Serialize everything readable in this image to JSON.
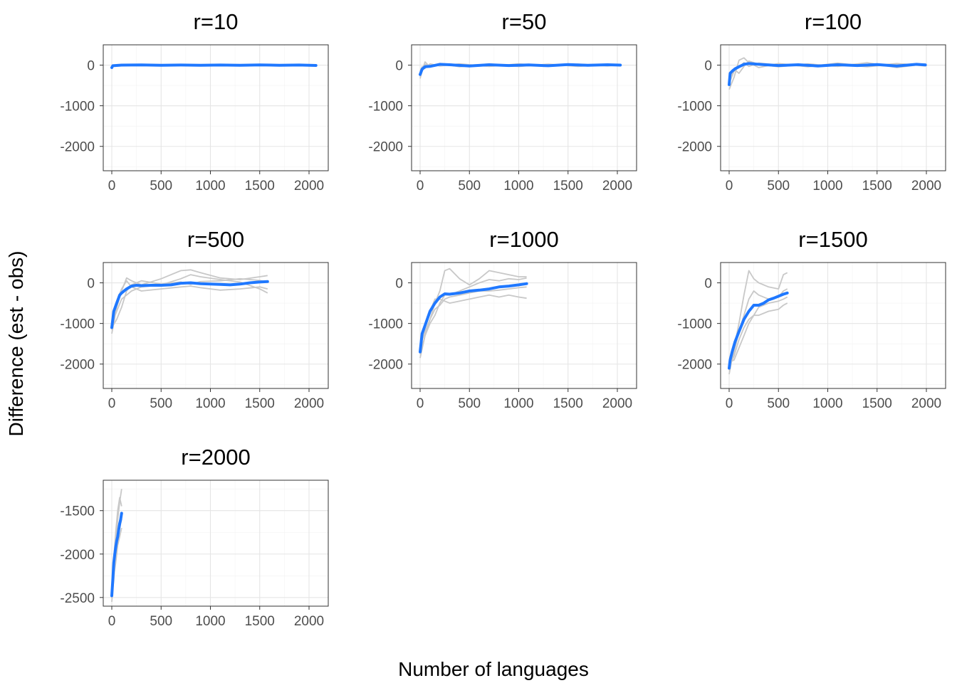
{
  "chart_data": {
    "type": "line",
    "xlabel": "Number of languages",
    "ylabel": "Difference (est - obs)",
    "colors": {
      "simulations": "#c8c8c8",
      "mean": "#1f78ff"
    },
    "facets": [
      {
        "title": "r=10",
        "xlim": [
          0,
          2080
        ],
        "ylim": [
          -2600,
          500
        ],
        "xticks": [
          0,
          500,
          1000,
          1500,
          2000
        ],
        "yticks": [
          0,
          -1000,
          -2000
        ],
        "mean": {
          "x": [
            0,
            10,
            100,
            300,
            500,
            700,
            900,
            1100,
            1300,
            1500,
            1700,
            1900,
            2070
          ],
          "y": [
            -60,
            -15,
            0,
            5,
            -5,
            3,
            -4,
            2,
            -3,
            4,
            -2,
            3,
            -8
          ]
        },
        "simulations": [
          {
            "x": [
              0,
              10,
              100,
              400,
              800,
              1200,
              1600,
              2070
            ],
            "y": [
              -80,
              -25,
              10,
              -10,
              8,
              -6,
              10,
              -12
            ]
          },
          {
            "x": [
              0,
              10,
              100,
              400,
              800,
              1200,
              1600,
              2070
            ],
            "y": [
              -40,
              -5,
              -10,
              12,
              -8,
              10,
              -8,
              6
            ]
          }
        ]
      },
      {
        "title": "r=50",
        "xlim": [
          0,
          2080
        ],
        "ylim": [
          -2600,
          500
        ],
        "xticks": [
          0,
          500,
          1000,
          1500,
          2000
        ],
        "yticks": [
          0,
          -1000,
          -2000
        ],
        "mean": {
          "x": [
            0,
            20,
            50,
            100,
            200,
            300,
            500,
            700,
            900,
            1100,
            1300,
            1500,
            1700,
            1900,
            2030
          ],
          "y": [
            -230,
            -100,
            -40,
            -30,
            20,
            10,
            -20,
            10,
            -10,
            5,
            -15,
            15,
            -5,
            10,
            0
          ]
        },
        "simulations": [
          {
            "x": [
              0,
              20,
              50,
              100,
              200,
              400,
              700,
              1000,
              1300,
              1600,
              1900,
              2030
            ],
            "y": [
              -330,
              -150,
              80,
              -50,
              40,
              -40,
              30,
              -35,
              25,
              -30,
              20,
              -15
            ]
          },
          {
            "x": [
              0,
              20,
              50,
              100,
              200,
              400,
              700,
              1000,
              1300,
              1600,
              1900,
              2030
            ],
            "y": [
              -150,
              -40,
              -80,
              30,
              -20,
              30,
              -30,
              30,
              -25,
              25,
              -20,
              10
            ]
          },
          {
            "x": [
              0,
              20,
              50,
              100,
              200,
              400,
              700,
              1000,
              1300,
              1600,
              1900,
              2030
            ],
            "y": [
              -280,
              -60,
              20,
              -30,
              40,
              -10,
              20,
              -20,
              10,
              20,
              -10,
              5
            ]
          }
        ]
      },
      {
        "title": "r=100",
        "xlim": [
          0,
          2080
        ],
        "ylim": [
          -2600,
          500
        ],
        "xticks": [
          0,
          500,
          1000,
          1500,
          2000
        ],
        "yticks": [
          0,
          -1000,
          -2000
        ],
        "mean": {
          "x": [
            0,
            10,
            30,
            60,
            100,
            150,
            200,
            300,
            500,
            700,
            900,
            1100,
            1300,
            1500,
            1700,
            1900,
            1990
          ],
          "y": [
            -480,
            -200,
            -150,
            -90,
            -40,
            20,
            40,
            20,
            -10,
            10,
            -20,
            10,
            -10,
            15,
            -20,
            20,
            5
          ]
        },
        "simulations": [
          {
            "x": [
              0,
              50,
              100,
              150,
              200,
              300,
              500,
              800,
              1100,
              1400,
              1700,
              1990
            ],
            "y": [
              -600,
              -300,
              120,
              180,
              60,
              -60,
              40,
              -40,
              50,
              -30,
              40,
              -20
            ]
          },
          {
            "x": [
              0,
              50,
              100,
              150,
              200,
              300,
              500,
              800,
              1100,
              1400,
              1700,
              1990
            ],
            "y": [
              -350,
              -100,
              -200,
              -30,
              100,
              20,
              -40,
              30,
              -30,
              60,
              -60,
              30
            ]
          },
          {
            "x": [
              0,
              50,
              100,
              150,
              200,
              300,
              500,
              800,
              1100,
              1400,
              1700,
              1990
            ],
            "y": [
              -450,
              -150,
              -50,
              60,
              -30,
              50,
              0,
              -20,
              20,
              -40,
              30,
              10
            ]
          }
        ]
      },
      {
        "title": "r=500",
        "xlim": [
          0,
          2080
        ],
        "ylim": [
          -2600,
          500
        ],
        "xticks": [
          0,
          500,
          1000,
          1500,
          2000
        ],
        "yticks": [
          0,
          -1000,
          -2000
        ],
        "mean": {
          "x": [
            0,
            20,
            50,
            80,
            100,
            150,
            200,
            250,
            300,
            400,
            500,
            600,
            700,
            800,
            900,
            1000,
            1100,
            1200,
            1300,
            1400,
            1500,
            1580
          ],
          "y": [
            -1100,
            -700,
            -500,
            -300,
            -250,
            -150,
            -80,
            -60,
            -70,
            -60,
            -60,
            -50,
            -10,
            0,
            -20,
            -30,
            -40,
            -50,
            -30,
            0,
            20,
            30
          ]
        },
        "simulations": [
          {
            "x": [
              0,
              50,
              100,
              150,
              200,
              300,
              500,
              700,
              800,
              900,
              1100,
              1300,
              1500,
              1580
            ],
            "y": [
              -1250,
              -600,
              -200,
              120,
              50,
              -50,
              100,
              300,
              320,
              250,
              120,
              80,
              150,
              180
            ]
          },
          {
            "x": [
              0,
              50,
              100,
              150,
              200,
              300,
              500,
              700,
              800,
              900,
              1100,
              1300,
              1500,
              1580
            ],
            "y": [
              -1150,
              -450,
              -150,
              50,
              -100,
              -200,
              -150,
              -100,
              -80,
              -120,
              -180,
              -150,
              -100,
              -150
            ]
          },
          {
            "x": [
              0,
              50,
              100,
              150,
              200,
              300,
              500,
              700,
              800,
              900,
              1100,
              1300,
              1500,
              1580
            ],
            "y": [
              -1000,
              -700,
              -400,
              -300,
              -200,
              -100,
              -50,
              100,
              200,
              150,
              80,
              20,
              -150,
              -250
            ]
          },
          {
            "x": [
              0,
              50,
              100,
              150,
              200,
              300,
              500,
              700,
              800,
              900,
              1100,
              1300,
              1500,
              1580
            ],
            "y": [
              -1100,
              -900,
              -600,
              -200,
              -50,
              50,
              -30,
              20,
              -40,
              30,
              50,
              100,
              60,
              20
            ]
          }
        ]
      },
      {
        "title": "r=1000",
        "xlim": [
          0,
          2080
        ],
        "ylim": [
          -2600,
          500
        ],
        "xticks": [
          0,
          500,
          1000,
          1500,
          2000
        ],
        "yticks": [
          0,
          -1000,
          -2000
        ],
        "mean": {
          "x": [
            0,
            20,
            50,
            100,
            150,
            200,
            250,
            300,
            400,
            500,
            600,
            700,
            800,
            900,
            1000,
            1080
          ],
          "y": [
            -1700,
            -1250,
            -1050,
            -700,
            -500,
            -350,
            -270,
            -280,
            -250,
            -200,
            -180,
            -150,
            -100,
            -80,
            -50,
            -20
          ]
        },
        "simulations": [
          {
            "x": [
              0,
              50,
              100,
              150,
              200,
              250,
              300,
              400,
              500,
              600,
              700,
              800,
              900,
              1000,
              1080
            ],
            "y": [
              -1850,
              -1300,
              -900,
              -500,
              -200,
              300,
              350,
              100,
              -50,
              100,
              300,
              250,
              200,
              150,
              150
            ]
          },
          {
            "x": [
              0,
              50,
              100,
              150,
              200,
              250,
              300,
              400,
              500,
              600,
              700,
              800,
              900,
              1000,
              1080
            ],
            "y": [
              -1600,
              -1100,
              -700,
              -400,
              -400,
              -450,
              -500,
              -450,
              -400,
              -350,
              -300,
              -350,
              -300,
              -350,
              -380
            ]
          },
          {
            "x": [
              0,
              50,
              100,
              150,
              200,
              250,
              300,
              400,
              500,
              600,
              700,
              800,
              900,
              1000,
              1080
            ],
            "y": [
              -1750,
              -1300,
              -1000,
              -800,
              -500,
              -300,
              -300,
              -200,
              -100,
              0,
              80,
              50,
              100,
              80,
              120
            ]
          },
          {
            "x": [
              0,
              50,
              100,
              150,
              200,
              250,
              300,
              400,
              500,
              600,
              700,
              800,
              900,
              1000,
              1080
            ],
            "y": [
              -1550,
              -1200,
              -900,
              -650,
              -550,
              -400,
              -350,
              -300,
              -250,
              -200,
              -200,
              -180,
              -150,
              -120,
              -100
            ]
          }
        ]
      },
      {
        "title": "r=1500",
        "xlim": [
          0,
          2080
        ],
        "ylim": [
          -2600,
          500
        ],
        "xticks": [
          0,
          500,
          1000,
          1500,
          2000
        ],
        "yticks": [
          0,
          -1000,
          -2000
        ],
        "mean": {
          "x": [
            0,
            10,
            30,
            60,
            100,
            150,
            200,
            250,
            300,
            350,
            400,
            450,
            500,
            550,
            590
          ],
          "y": [
            -2100,
            -1900,
            -1700,
            -1450,
            -1200,
            -900,
            -700,
            -550,
            -550,
            -500,
            -420,
            -380,
            -330,
            -280,
            -250
          ]
        },
        "simulations": [
          {
            "x": [
              0,
              50,
              100,
              150,
              200,
              250,
              300,
              400,
              500,
              550,
              590
            ],
            "y": [
              -2250,
              -1600,
              -1000,
              -300,
              300,
              100,
              0,
              -100,
              -150,
              200,
              250
            ]
          },
          {
            "x": [
              0,
              50,
              100,
              150,
              200,
              250,
              300,
              400,
              500,
              550,
              590
            ],
            "y": [
              -2050,
              -1800,
              -1400,
              -1100,
              -900,
              -800,
              -800,
              -700,
              -650,
              -550,
              -500
            ]
          },
          {
            "x": [
              0,
              50,
              100,
              150,
              200,
              250,
              300,
              400,
              500,
              550,
              590
            ],
            "y": [
              -2150,
              -1700,
              -1200,
              -800,
              -400,
              -200,
              -300,
              -400,
              -350,
              -200,
              -150
            ]
          },
          {
            "x": [
              0,
              50,
              100,
              150,
              200,
              250,
              300,
              400,
              500,
              550,
              590
            ],
            "y": [
              -1950,
              -1900,
              -1600,
              -1300,
              -1000,
              -800,
              -600,
              -500,
              -450,
              -400,
              -350
            ]
          }
        ]
      },
      {
        "title": "r=2000",
        "xlim": [
          0,
          2080
        ],
        "ylim": [
          -2600,
          -1150
        ],
        "xticks": [
          0,
          500,
          1000,
          1500,
          2000
        ],
        "yticks": [
          -1500,
          -2000,
          -2500
        ],
        "mean": {
          "x": [
            0,
            10,
            20,
            30,
            40,
            50,
            60,
            70,
            80,
            90,
            100
          ],
          "y": [
            -2480,
            -2300,
            -2100,
            -2000,
            -1920,
            -1850,
            -1800,
            -1720,
            -1650,
            -1600,
            -1530
          ]
        },
        "simulations": [
          {
            "x": [
              0,
              20,
              40,
              60,
              80,
              100
            ],
            "y": [
              -2400,
              -2100,
              -1900,
              -1600,
              -1400,
              -1250
            ]
          },
          {
            "x": [
              0,
              20,
              40,
              60,
              80,
              100
            ],
            "y": [
              -2500,
              -2300,
              -2000,
              -1800,
              -1700,
              -1600
            ]
          },
          {
            "x": [
              0,
              20,
              40,
              60,
              80,
              100
            ],
            "y": [
              -2450,
              -2050,
              -1750,
              -1500,
              -1350,
              -1450
            ]
          },
          {
            "x": [
              0,
              20,
              40,
              60,
              80,
              100
            ],
            "y": [
              -2550,
              -2250,
              -2100,
              -1900,
              -1800,
              -1700
            ]
          }
        ]
      }
    ]
  }
}
